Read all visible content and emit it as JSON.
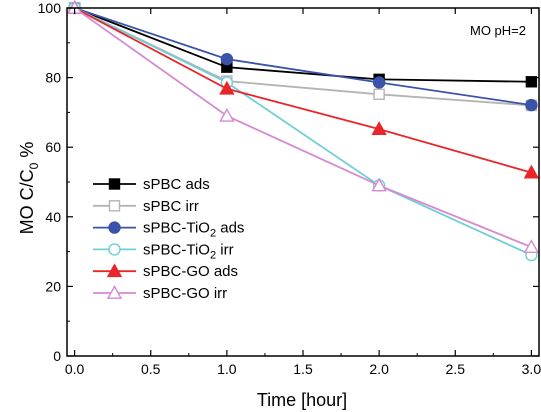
{
  "chart_data": {
    "type": "line",
    "title": "",
    "annotation": "MO pH=2",
    "xlabel": "Time [hour]",
    "ylabel": {
      "main": "MO C/C",
      "sub": "0",
      "unit": "%"
    },
    "xlim": [
      -0.05,
      3.05
    ],
    "ylim": [
      0,
      100
    ],
    "xticks": [
      0.0,
      0.5,
      1.0,
      1.5,
      2.0,
      2.5,
      3.0
    ],
    "xtick_labels": [
      "0.0",
      "0.5",
      "1.0",
      "1.5",
      "2.0",
      "2.5",
      "3.0"
    ],
    "yticks": [
      0,
      20,
      40,
      60,
      80,
      100
    ],
    "ytick_labels": [
      "0",
      "20",
      "40",
      "60",
      "80",
      "100"
    ],
    "grid": false,
    "legend_position": "left",
    "x": [
      0,
      1,
      2,
      3
    ],
    "series": [
      {
        "name": "sPBC ads",
        "legend_parts": [
          "sPBC ads"
        ],
        "values": [
          100,
          83,
          79.5,
          78.8
        ],
        "color": "#000000",
        "marker": "square",
        "filled": true
      },
      {
        "name": "sPBC irr",
        "legend_parts": [
          "sPBC irr"
        ],
        "values": [
          100,
          79,
          75.2,
          72
        ],
        "color": "#b4b4b4",
        "marker": "square",
        "filled": false
      },
      {
        "name": "sPBC-TiO2 ads",
        "legend_parts": [
          "sPBC-TiO",
          "2",
          " ads"
        ],
        "values": [
          100,
          85.3,
          78.6,
          72.1
        ],
        "color": "#3a52a8",
        "marker": "circle",
        "filled": true
      },
      {
        "name": "sPBC-TiO2 irr",
        "legend_parts": [
          "sPBC-TiO",
          "2",
          " irr"
        ],
        "values": [
          100,
          78.6,
          49,
          29
        ],
        "color": "#6fcfd6",
        "marker": "circle",
        "filled": false
      },
      {
        "name": "sPBC-GO ads",
        "legend_parts": [
          "sPBC-GO ads"
        ],
        "values": [
          100,
          76.8,
          65.2,
          52.7
        ],
        "color": "#e8262a",
        "marker": "triangle",
        "filled": true
      },
      {
        "name": "sPBC-GO irr",
        "legend_parts": [
          "sPBC-GO irr"
        ],
        "values": [
          100,
          69,
          49,
          31.3
        ],
        "color": "#d68ad0",
        "marker": "triangle",
        "filled": false
      }
    ]
  }
}
